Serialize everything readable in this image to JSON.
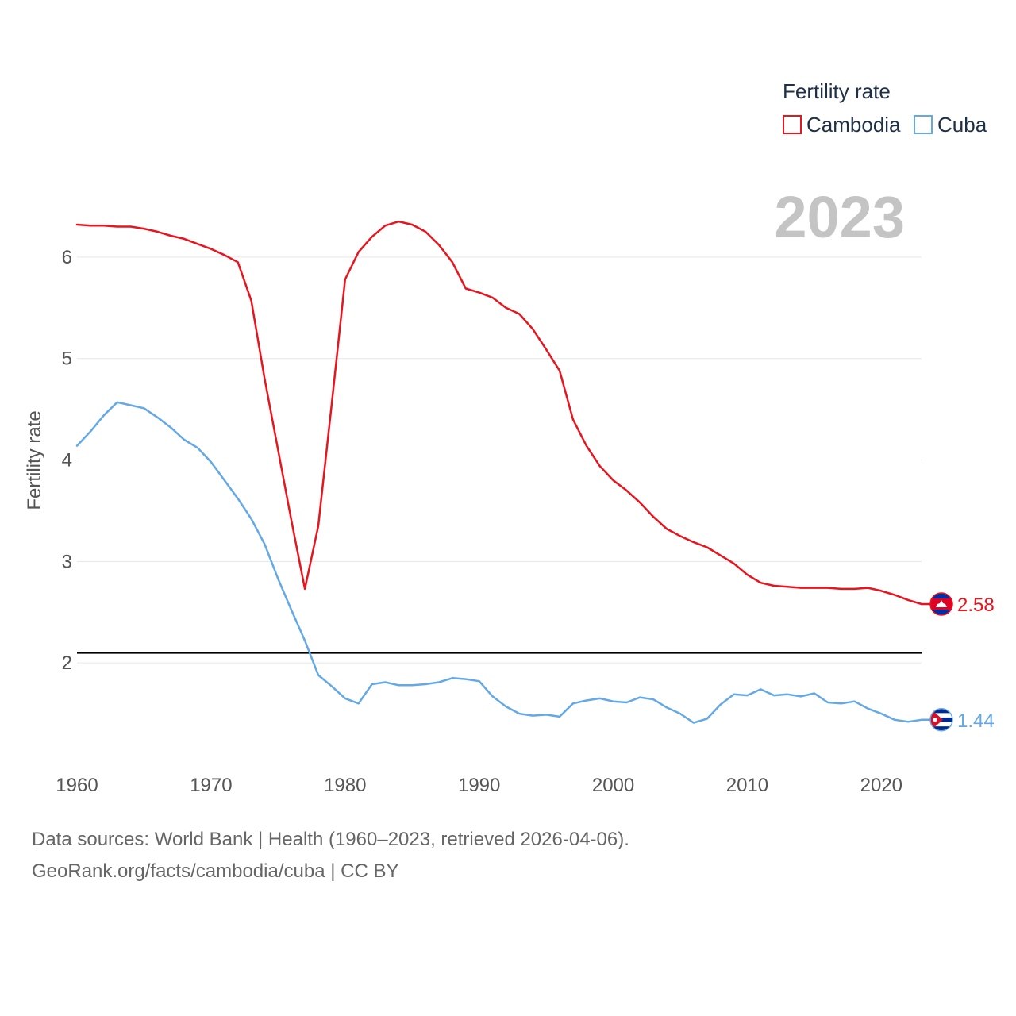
{
  "chart_data": {
    "type": "line",
    "title": "",
    "ylabel": "Fertility rate",
    "xlabel": "",
    "year_label": "2023",
    "xlim": [
      1960,
      2023
    ],
    "ylim": [
      1.0,
      6.75
    ],
    "x_ticks": [
      1960,
      1970,
      1980,
      1990,
      2000,
      2010,
      2020
    ],
    "y_ticks": [
      2,
      3,
      4,
      5,
      6
    ],
    "reference_line": 2.1,
    "legend": {
      "title": "Fertility rate",
      "placement": "top-right"
    },
    "x": [
      1960,
      1961,
      1962,
      1963,
      1964,
      1965,
      1966,
      1967,
      1968,
      1969,
      1970,
      1971,
      1972,
      1973,
      1974,
      1975,
      1976,
      1977,
      1978,
      1979,
      1980,
      1981,
      1982,
      1983,
      1984,
      1985,
      1986,
      1987,
      1988,
      1989,
      1990,
      1991,
      1992,
      1993,
      1994,
      1995,
      1996,
      1997,
      1998,
      1999,
      2000,
      2001,
      2002,
      2003,
      2004,
      2005,
      2006,
      2007,
      2008,
      2009,
      2010,
      2011,
      2012,
      2013,
      2014,
      2015,
      2016,
      2017,
      2018,
      2019,
      2020,
      2021,
      2022,
      2023
    ],
    "series": [
      {
        "name": "Cambodia",
        "color": "#e8141e",
        "end_label": "2.58",
        "flag": "cambodia-flag-icon",
        "values": [
          6.32,
          6.31,
          6.31,
          6.3,
          6.3,
          6.28,
          6.25,
          6.21,
          6.18,
          6.13,
          6.08,
          6.02,
          5.95,
          5.57,
          4.8,
          4.1,
          3.4,
          2.73,
          3.35,
          4.55,
          5.78,
          6.05,
          6.2,
          6.31,
          6.35,
          6.32,
          6.25,
          6.12,
          5.95,
          5.69,
          5.65,
          5.6,
          5.5,
          5.44,
          5.29,
          5.09,
          4.88,
          4.4,
          4.14,
          3.94,
          3.8,
          3.7,
          3.58,
          3.44,
          3.32,
          3.25,
          3.19,
          3.14,
          3.06,
          2.98,
          2.87,
          2.79,
          2.76,
          2.75,
          2.74,
          2.74,
          2.74,
          2.73,
          2.73,
          2.74,
          2.71,
          2.67,
          2.62,
          2.58
        ]
      },
      {
        "name": "Cuba",
        "color": "#64a8e6",
        "end_label": "1.44",
        "flag": "cuba-flag-icon",
        "values": [
          4.14,
          4.28,
          4.44,
          4.57,
          4.54,
          4.51,
          4.42,
          4.32,
          4.2,
          4.12,
          3.98,
          3.8,
          3.62,
          3.42,
          3.17,
          2.83,
          2.52,
          2.22,
          1.88,
          1.77,
          1.65,
          1.6,
          1.79,
          1.81,
          1.78,
          1.78,
          1.79,
          1.81,
          1.85,
          1.84,
          1.82,
          1.67,
          1.57,
          1.5,
          1.48,
          1.49,
          1.47,
          1.6,
          1.63,
          1.65,
          1.62,
          1.61,
          1.66,
          1.64,
          1.56,
          1.5,
          1.41,
          1.45,
          1.59,
          1.69,
          1.68,
          1.74,
          1.68,
          1.69,
          1.67,
          1.7,
          1.61,
          1.6,
          1.62,
          1.55,
          1.5,
          1.44,
          1.42,
          1.44
        ]
      }
    ]
  },
  "footer": {
    "line1": "Data sources: World Bank | Health (1960–2023, retrieved 2026-04-06).",
    "line2": "GeoRank.org/facts/cambodia/cuba | CC BY"
  }
}
